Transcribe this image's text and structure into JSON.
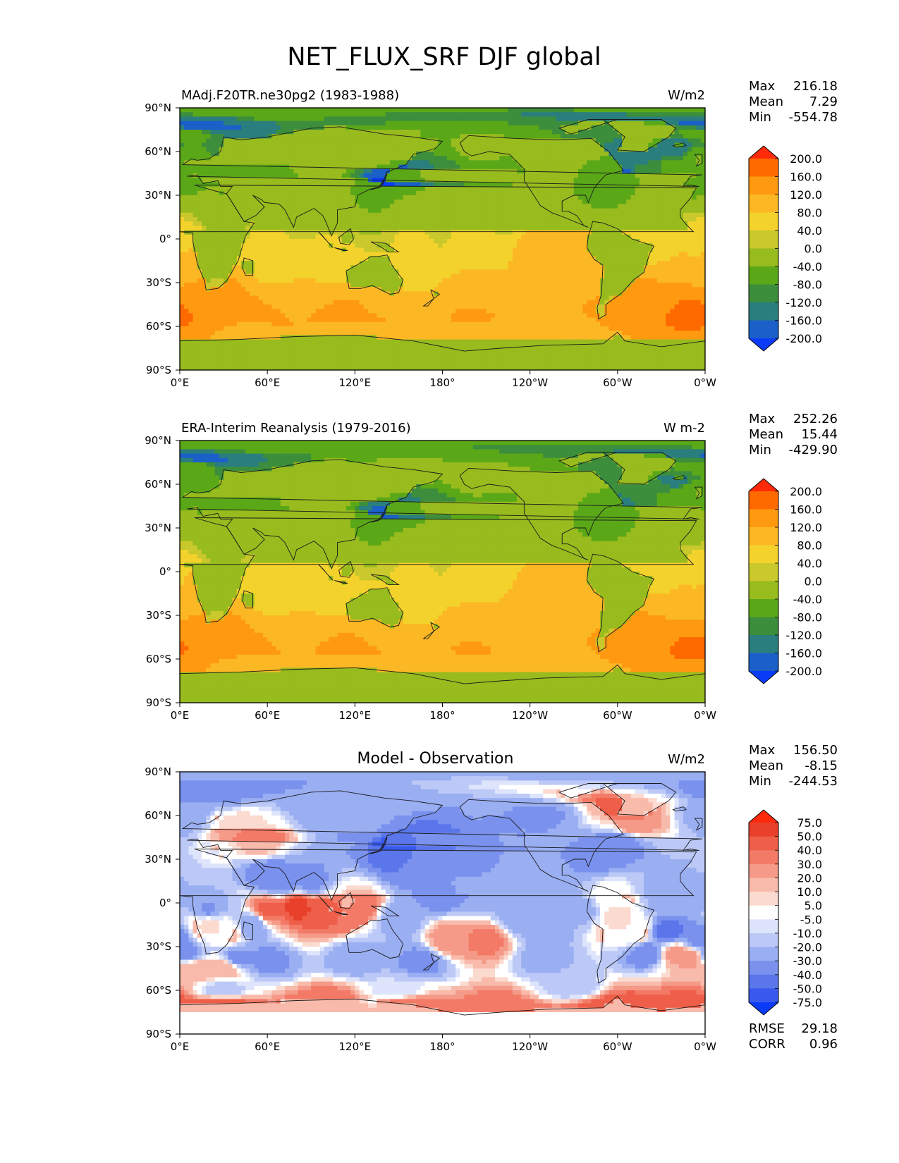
{
  "title": "NET_FLUX_SRF DJF global",
  "chart_data": [
    {
      "type": "heatmap",
      "left_title": "MAdj.F20TR.ne30pg2 (1983-1988)",
      "center_title": "",
      "units": "W/m2",
      "stats": [
        {
          "label": "Max",
          "value": "216.18"
        },
        {
          "label": "Mean",
          "value": "7.29"
        },
        {
          "label": "Min",
          "value": "-554.78"
        }
      ],
      "colorbar": {
        "levels": [
          "200.0",
          "160.0",
          "120.0",
          "80.0",
          "40.0",
          "0.0",
          "-40.0",
          "-80.0",
          "-120.0",
          "-160.0",
          "-200.0"
        ],
        "colors": [
          "#ff2a0a",
          "#ff6a00",
          "#ff9a10",
          "#fbb824",
          "#f4d22c",
          "#c9c82c",
          "#98bb1e",
          "#5aa818",
          "#3c8e3c",
          "#2a7e7e",
          "#1a60c8",
          "#0a3cf8"
        ]
      },
      "x_ticks": [
        "0°E",
        "60°E",
        "120°E",
        "180°",
        "120°W",
        "60°W",
        "0°W"
      ],
      "y_ticks": [
        "90°N",
        "60°N",
        "30°N",
        "0°",
        "30°S",
        "60°S",
        "90°S"
      ],
      "xlim": [
        0,
        360
      ],
      "ylim": [
        -90,
        90
      ]
    },
    {
      "type": "heatmap",
      "left_title": "ERA-Interim Reanalysis (1979-2016)",
      "center_title": "",
      "units": "W m-2",
      "stats": [
        {
          "label": "Max",
          "value": "252.26"
        },
        {
          "label": "Mean",
          "value": "15.44"
        },
        {
          "label": "Min",
          "value": "-429.90"
        }
      ],
      "colorbar": {
        "levels": [
          "200.0",
          "160.0",
          "120.0",
          "80.0",
          "40.0",
          "0.0",
          "-40.0",
          "-80.0",
          "-120.0",
          "-160.0",
          "-200.0"
        ],
        "colors": [
          "#ff2a0a",
          "#ff6a00",
          "#ff9a10",
          "#fbb824",
          "#f4d22c",
          "#c9c82c",
          "#98bb1e",
          "#5aa818",
          "#3c8e3c",
          "#2a7e7e",
          "#1a60c8",
          "#0a3cf8"
        ]
      },
      "x_ticks": [
        "0°E",
        "60°E",
        "120°E",
        "180°",
        "120°W",
        "60°W",
        "0°W"
      ],
      "y_ticks": [
        "90°N",
        "60°N",
        "30°N",
        "0°",
        "30°S",
        "60°S",
        "90°S"
      ],
      "xlim": [
        0,
        360
      ],
      "ylim": [
        -90,
        90
      ]
    },
    {
      "type": "heatmap",
      "left_title": "",
      "center_title": "Model - Observation",
      "units": "W/m2",
      "stats": [
        {
          "label": "Max",
          "value": "156.50"
        },
        {
          "label": "Mean",
          "value": "-8.15"
        },
        {
          "label": "Min",
          "value": "-244.53"
        }
      ],
      "colorbar": {
        "levels": [
          "75.0",
          "50.0",
          "40.0",
          "30.0",
          "20.0",
          "10.0",
          "5.0",
          "-5.0",
          "-10.0",
          "-20.0",
          "-30.0",
          "-40.0",
          "-50.0",
          "-75.0"
        ],
        "colors": [
          "#ff2a0a",
          "#e8402a",
          "#ee5e48",
          "#f27a66",
          "#f59a88",
          "#f8baab",
          "#fbdad0",
          "#ffffff",
          "#dde4fb",
          "#bcc9f7",
          "#9aaef2",
          "#7a92ee",
          "#5a76ea",
          "#3a5aee",
          "#0a3cf8"
        ]
      },
      "x_ticks": [
        "0°E",
        "60°E",
        "120°E",
        "180°",
        "120°W",
        "60°W",
        "0°W"
      ],
      "y_ticks": [
        "90°N",
        "60°N",
        "30°N",
        "0°",
        "30°S",
        "60°S",
        "90°S"
      ],
      "xlim": [
        0,
        360
      ],
      "ylim": [
        -90,
        90
      ],
      "metrics": [
        {
          "label": "RMSE",
          "value": "29.18"
        },
        {
          "label": "CORR",
          "value": "0.96"
        }
      ]
    }
  ]
}
